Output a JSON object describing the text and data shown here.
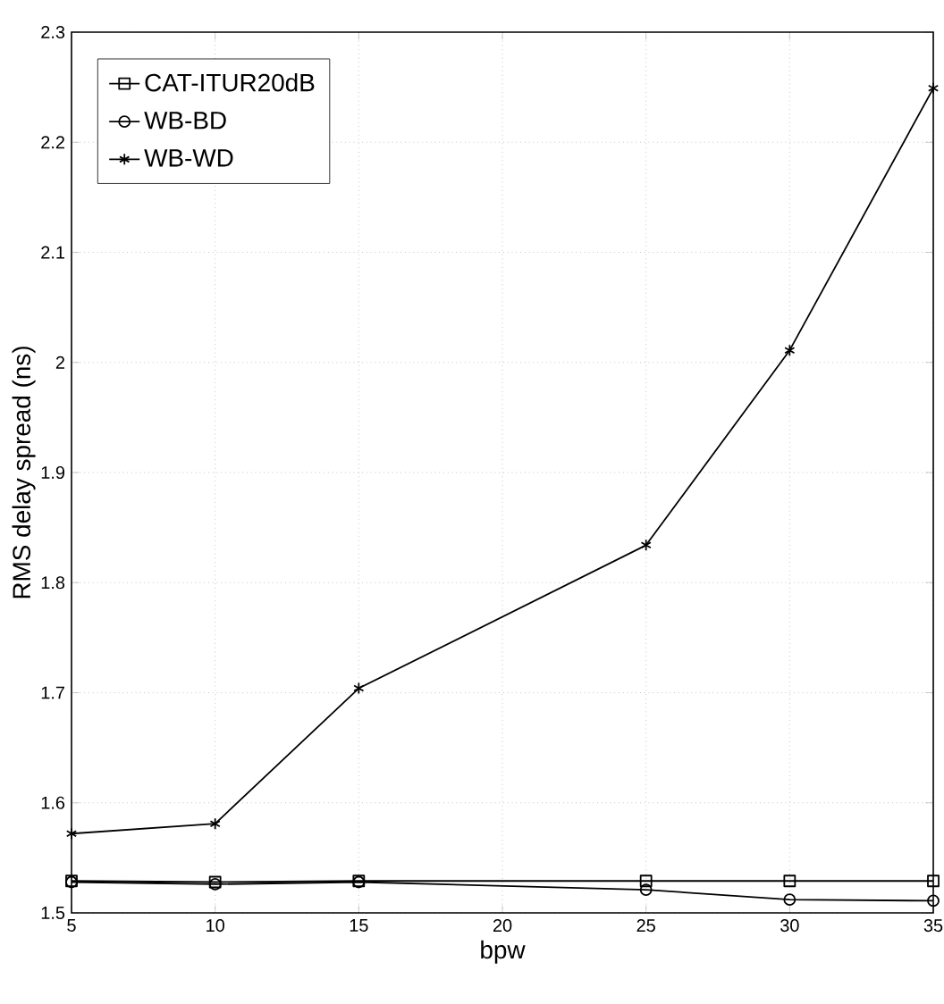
{
  "chart_data": {
    "type": "line",
    "xlabel": "bpw",
    "ylabel": "RMS delay spread (ns)",
    "x": [
      5,
      10,
      15,
      25,
      30,
      35
    ],
    "series": [
      {
        "name": "CAT-ITUR20dB",
        "color": "#000000",
        "marker": "square",
        "values": [
          1.529,
          1.528,
          1.529,
          1.529,
          1.529,
          1.529
        ]
      },
      {
        "name": "WB-BD",
        "color": "#000000",
        "marker": "circle",
        "values": [
          1.528,
          1.526,
          1.528,
          1.521,
          1.512,
          1.511
        ]
      },
      {
        "name": "WB-WD",
        "color": "#000000",
        "marker": "cross",
        "values": [
          1.572,
          1.581,
          1.704,
          1.834,
          2.011,
          2.249
        ]
      }
    ],
    "xlim": [
      5,
      35
    ],
    "xticks": [
      5,
      10,
      15,
      20,
      25,
      30,
      35
    ],
    "ylim": [
      1.5,
      2.3
    ],
    "yticks": [
      1.5,
      1.6,
      1.7,
      1.8,
      1.9,
      2,
      2.1,
      2.2,
      2.3
    ],
    "grid": true,
    "legend": "top left",
    "line_style": "solid"
  }
}
